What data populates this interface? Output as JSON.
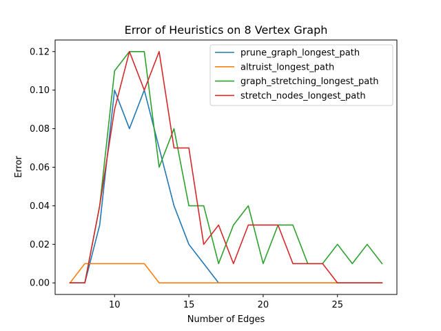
{
  "chart_data": {
    "type": "line",
    "title": "Error of Heuristics on 8 Vertex Graph",
    "xlabel": "Number of Edges",
    "ylabel": "Error",
    "xlim": [
      6,
      29
    ],
    "ylim": [
      -0.006,
      0.126
    ],
    "xticks": [
      10,
      15,
      20,
      25
    ],
    "yticks": [
      0.0,
      0.02,
      0.04,
      0.06,
      0.08,
      0.1,
      0.12
    ],
    "xtick_labels": [
      "10",
      "15",
      "20",
      "25"
    ],
    "ytick_labels": [
      "0.00",
      "0.02",
      "0.04",
      "0.06",
      "0.08",
      "0.10",
      "0.12"
    ],
    "grid": false,
    "legend_position": "top-right",
    "x": [
      7,
      8,
      9,
      10,
      11,
      12,
      13,
      14,
      15,
      16,
      17,
      18,
      19,
      20,
      21,
      22,
      23,
      24,
      25,
      26,
      27,
      28
    ],
    "series": [
      {
        "name": "prune_graph_longest_path",
        "color": "#1f77b4",
        "values": [
          0.0,
          0.0,
          0.03,
          0.1,
          0.08,
          0.1,
          0.07,
          0.04,
          0.02,
          0.01,
          0.0,
          0.0,
          0.0,
          0.0,
          0.0,
          0.0,
          0.0,
          0.0,
          0.0,
          0.0,
          0.0,
          0.0
        ]
      },
      {
        "name": "altruist_longest_path",
        "color": "#ff7f0e",
        "values": [
          0.0,
          0.01,
          0.01,
          0.01,
          0.01,
          0.01,
          0.0,
          0.0,
          0.0,
          0.0,
          0.0,
          0.0,
          0.0,
          0.0,
          0.0,
          0.0,
          0.0,
          0.0,
          0.0,
          0.0,
          0.0,
          0.0
        ]
      },
      {
        "name": "graph_stretching_longest_path",
        "color": "#2ca02c",
        "values": [
          0.0,
          0.0,
          0.04,
          0.11,
          0.12,
          0.12,
          0.06,
          0.08,
          0.04,
          0.04,
          0.01,
          0.03,
          0.04,
          0.01,
          0.03,
          0.03,
          0.01,
          0.01,
          0.02,
          0.01,
          0.02,
          0.01
        ]
      },
      {
        "name": "stretch_nodes_longest_path",
        "color": "#d62728",
        "values": [
          0.0,
          0.0,
          0.04,
          0.09,
          0.12,
          0.1,
          0.12,
          0.07,
          0.07,
          0.02,
          0.03,
          0.01,
          0.03,
          0.03,
          0.03,
          0.01,
          0.01,
          0.01,
          0.0,
          0.0,
          0.0,
          0.0
        ]
      }
    ]
  }
}
